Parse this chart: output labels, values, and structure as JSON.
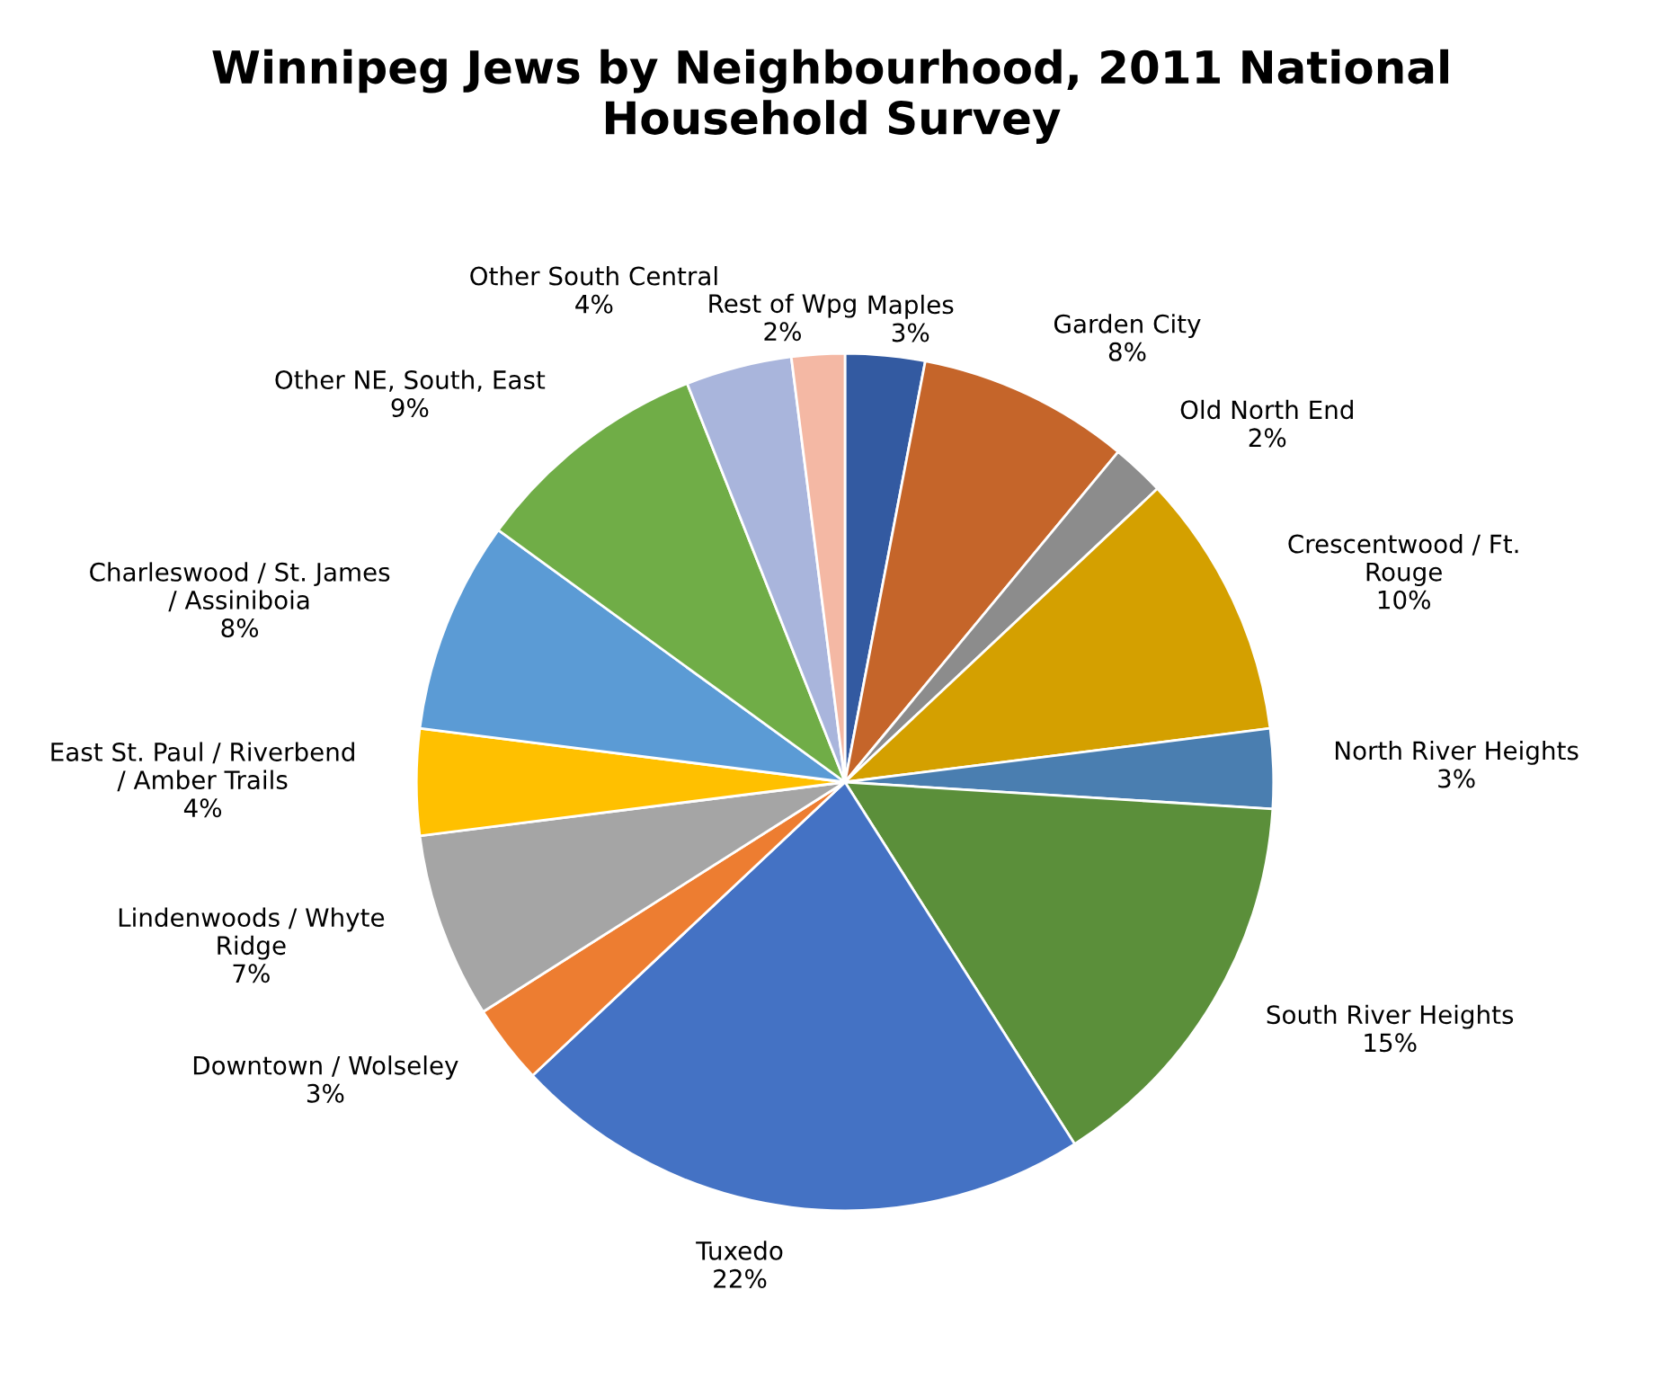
{
  "chart_data": {
    "type": "pie",
    "title": "Winnipeg Jews by Neighbourhood, 2011 National\nHousehold Survey",
    "categories": [
      "Maples",
      "Garden City",
      "Old North End",
      "Crescentwood / Ft.\nRouge",
      "North River Heights",
      "South River Heights",
      "Tuxedo",
      "Downtown / Wolseley",
      "Lindenwoods / Whyte\nRidge",
      "East St. Paul / Riverbend\n/ Amber Trails",
      "Charleswood / St. James\n/ Assiniboia",
      "Other NE, South, East",
      "Other South Central",
      "Rest of Wpg"
    ],
    "values": [
      3,
      8,
      2,
      10,
      3,
      15,
      22,
      3,
      7,
      4,
      8,
      9,
      4,
      2
    ],
    "value_labels": [
      "3%",
      "8%",
      "2%",
      "10%",
      "3%",
      "15%",
      "22%",
      "3%",
      "7%",
      "4%",
      "8%",
      "9%",
      "4%",
      "2%"
    ],
    "colors": [
      "#335aa1",
      "#c5652a",
      "#8c8c8c",
      "#d4a000",
      "#4a7eb0",
      "#5b8f3a",
      "#4472c4",
      "#ed7d31",
      "#a5a5a5",
      "#ffc000",
      "#5b9bd5",
      "#70ad47",
      "#a9b5dc",
      "#f4b8a4"
    ],
    "legend": false
  }
}
